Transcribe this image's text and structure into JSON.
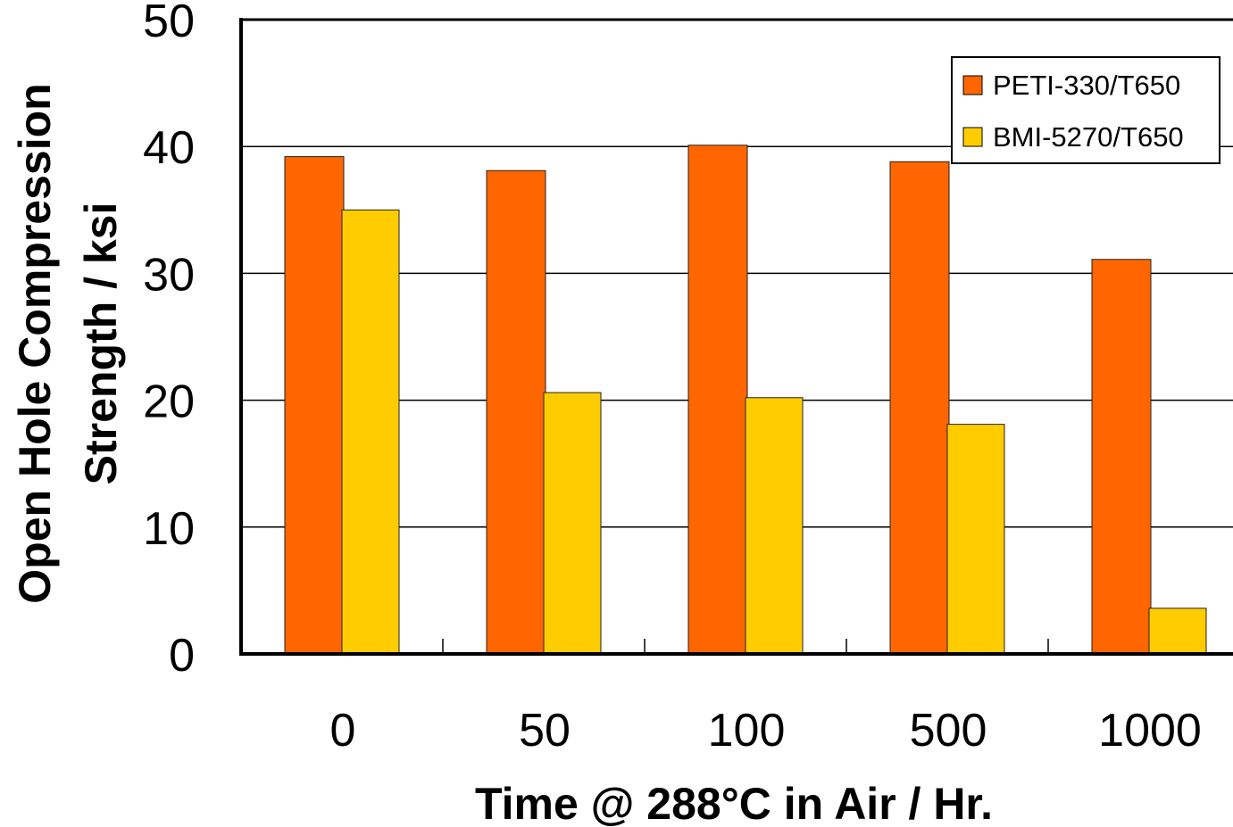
{
  "chart_data": {
    "type": "bar",
    "title": "",
    "categories": [
      "0",
      "50",
      "100",
      "500",
      "1000"
    ],
    "series": [
      {
        "name": "PETI-330/T650",
        "color": "#FF6600",
        "values": [
          39.2,
          38.1,
          40.1,
          38.8,
          31.1
        ]
      },
      {
        "name": "BMI-5270/T650",
        "color": "#FFCC00",
        "values": [
          35.0,
          20.6,
          20.2,
          18.1,
          3.6
        ]
      }
    ],
    "xlabel": "Time @ 288°C in Air / Hr.",
    "ylabel_lines": [
      "Open Hole Compression",
      "Strength  / ksi"
    ],
    "yticks": [
      "0",
      "10",
      "20",
      "30",
      "40",
      "50"
    ],
    "ylim": [
      0,
      50
    ],
    "grid": true,
    "legend_position": "top-right"
  }
}
